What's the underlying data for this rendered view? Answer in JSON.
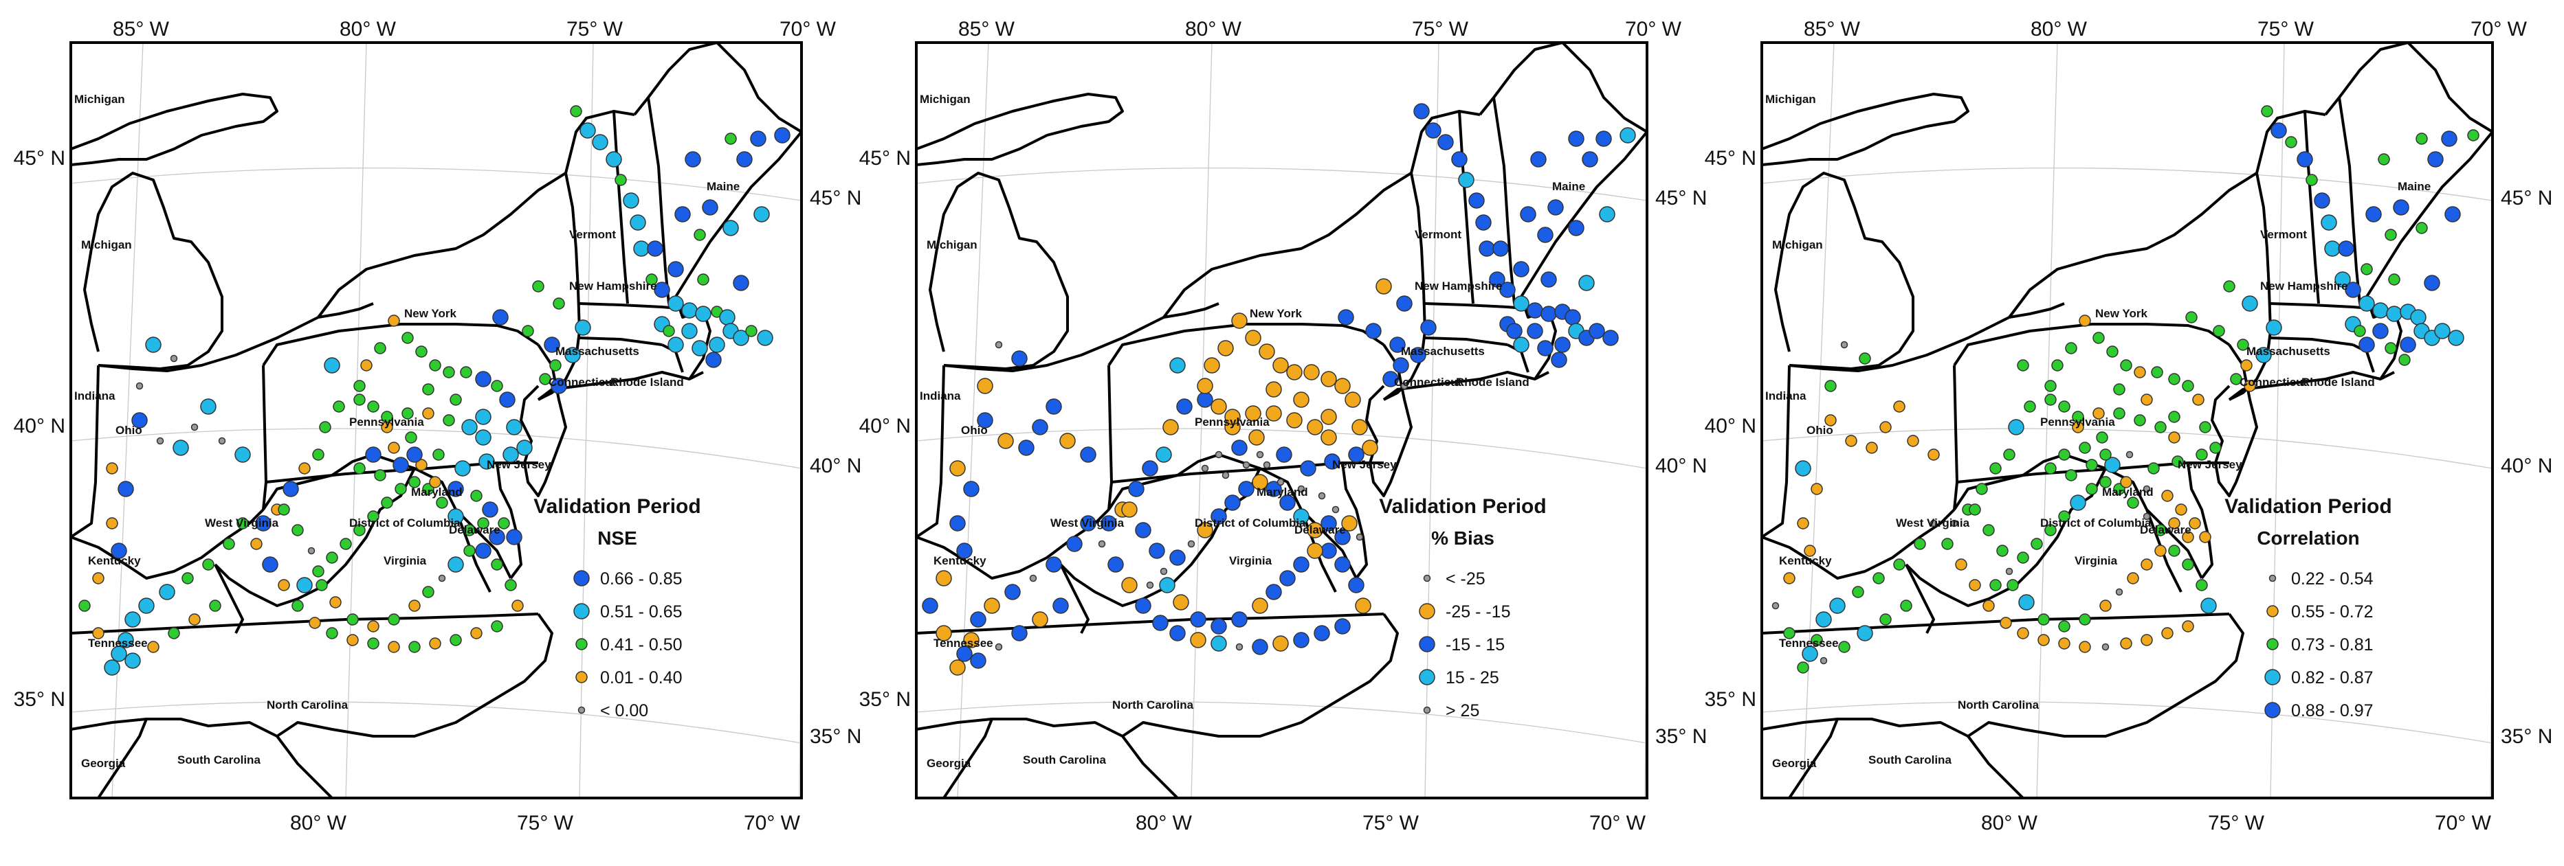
{
  "panels": [
    {
      "legend_title": "Validation Period",
      "metric": "NSE",
      "classes": [
        {
          "label": "0.66 - 0.85",
          "color": "#1a5ee8",
          "size": "large"
        },
        {
          "label": "0.51 - 0.65",
          "color": "#22b8e8",
          "size": "large"
        },
        {
          "label": "0.41 - 0.50",
          "color": "#2ecc2e",
          "size": "medium"
        },
        {
          "label": "0.01 - 0.40",
          "color": "#f2a81d",
          "size": "medium"
        },
        {
          "label": "< 0.00",
          "color": "#9a9a9a",
          "size": "small"
        }
      ]
    },
    {
      "legend_title": "Validation Period",
      "metric": "% Bias",
      "classes": [
        {
          "label": "< -25",
          "color": "#9a9a9a",
          "size": "small"
        },
        {
          "label": "-25 - -15",
          "color": "#f2a81d",
          "size": "large"
        },
        {
          "label": "-15 - 15",
          "color": "#1a5ee8",
          "size": "large"
        },
        {
          "label": "15 - 25",
          "color": "#22b8e8",
          "size": "large"
        },
        {
          "label": "> 25",
          "color": "#9a9a9a",
          "size": "small"
        }
      ]
    },
    {
      "legend_title": "Validation Period",
      "metric": "Correlation",
      "classes": [
        {
          "label": "0.22 - 0.54",
          "color": "#9a9a9a",
          "size": "small"
        },
        {
          "label": "0.55 - 0.72",
          "color": "#f2a81d",
          "size": "medium"
        },
        {
          "label": "0.73 - 0.81",
          "color": "#2ecc2e",
          "size": "medium"
        },
        {
          "label": "0.82 - 0.87",
          "color": "#22b8e8",
          "size": "large"
        },
        {
          "label": "0.88 - 0.97",
          "color": "#1a5ee8",
          "size": "large"
        }
      ]
    }
  ],
  "axis": {
    "top_lon": [
      "85° W",
      "80° W",
      "75° W",
      "70° W"
    ],
    "bottom_lon": [
      "80° W",
      "75° W",
      "70° W"
    ],
    "left_lat": [
      "45° N",
      "40° N",
      "35° N"
    ],
    "right_lat": [
      "45° N",
      "40° N",
      "35° N"
    ]
  },
  "states": [
    "Michigan",
    "Michigan",
    "Indiana",
    "Ohio",
    "Kentucky",
    "Tennessee",
    "Georgia",
    "South Carolina",
    "North Carolina",
    "Virginia",
    "West Virginia",
    "District of Columbia",
    "Maryland",
    "Delaware",
    "Pennsylvania",
    "New Jersey",
    "New York",
    "Connecticut",
    "Rhode Island",
    "Massachusetts",
    "New Hampshire",
    "Vermont",
    "Maine"
  ]
}
